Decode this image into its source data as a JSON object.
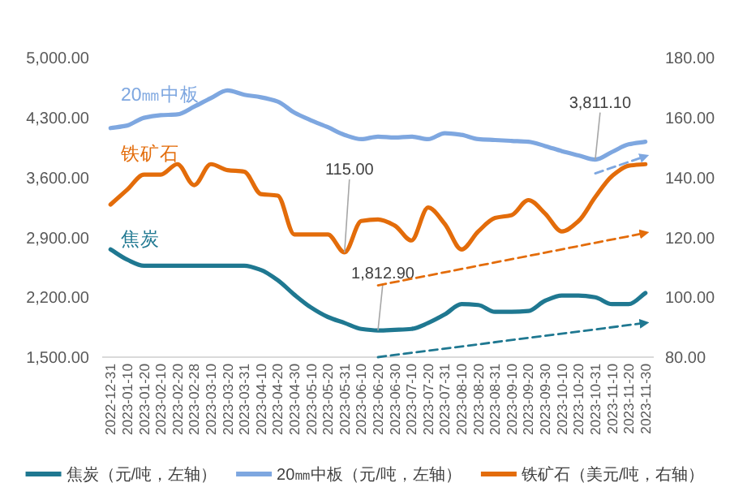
{
  "chart_data": {
    "type": "line",
    "categories": [
      "2022-12-31",
      "2023-01-10",
      "2023-01-20",
      "2023-02-10",
      "2023-02-20",
      "2023-02-28",
      "2023-03-10",
      "2023-03-20",
      "2023-03-31",
      "2023-04-10",
      "2023-04-20",
      "2023-04-30",
      "2023-05-10",
      "2023-05-20",
      "2023-05-31",
      "2023-06-10",
      "2023-06-20",
      "2023-06-30",
      "2023-07-10",
      "2023-07-20",
      "2023-07-31",
      "2023-08-10",
      "2023-08-20",
      "2023-08-31",
      "2023-09-10",
      "2023-09-20",
      "2023-09-30",
      "2023-10-10",
      "2023-10-20",
      "2023-10-31",
      "2023-11-10",
      "2023-11-20",
      "2023-11-30"
    ],
    "series": [
      {
        "name": "焦炭（元/吨，左轴）",
        "color": "#1f7891",
        "values": [
          2760,
          2640,
          2570,
          2570,
          2570,
          2570,
          2570,
          2570,
          2570,
          2520,
          2400,
          2230,
          2080,
          1970,
          1900,
          1830,
          1812.9,
          1820,
          1830,
          1900,
          2000,
          2120,
          2110,
          2030,
          2030,
          2040,
          2160,
          2220,
          2220,
          2200,
          2120,
          2120,
          2250
        ],
        "value_labels": [
          null,
          null,
          null,
          null,
          null,
          null,
          null,
          null,
          null,
          null,
          null,
          null,
          null,
          null,
          null,
          null,
          "1,812.90",
          null,
          null,
          null,
          null,
          null,
          null,
          null,
          null,
          null,
          null,
          null,
          null,
          null,
          null,
          null,
          null
        ]
      },
      {
        "name": "20㎜中板（元/吨，左轴）",
        "color": "#7ea7e0",
        "values": [
          4180,
          4210,
          4300,
          4330,
          4340,
          4430,
          4530,
          4620,
          4570,
          4540,
          4490,
          4360,
          4270,
          4190,
          4100,
          4050,
          4080,
          4070,
          4080,
          4050,
          4120,
          4100,
          4050,
          4040,
          4030,
          4020,
          3970,
          3910,
          3860,
          3811.1,
          3900,
          3990,
          4020
        ],
        "value_labels": [
          null,
          null,
          null,
          null,
          null,
          null,
          null,
          null,
          null,
          null,
          null,
          null,
          null,
          null,
          null,
          null,
          null,
          null,
          null,
          null,
          null,
          null,
          null,
          null,
          null,
          null,
          null,
          null,
          null,
          "3,811.10",
          null,
          null,
          null
        ]
      },
      {
        "name": "铁矿石（美元/吨，右轴）",
        "color": "#e36c0a",
        "axis": "y2",
        "values": [
          131,
          136,
          141,
          141,
          144.5,
          137.5,
          144.5,
          142.5,
          142,
          134.5,
          134,
          121,
          121,
          121,
          115.0,
          125.5,
          126,
          124,
          119,
          130,
          124.5,
          116,
          122,
          126.5,
          127.5,
          132.5,
          128,
          122,
          125.5,
          133.5,
          140.5,
          144,
          144.5
        ],
        "value_labels": [
          null,
          null,
          null,
          null,
          null,
          null,
          null,
          null,
          null,
          null,
          null,
          null,
          null,
          null,
          "115.00",
          null,
          null,
          null,
          null,
          null,
          null,
          null,
          null,
          null,
          null,
          null,
          null,
          null,
          null,
          null,
          null,
          null,
          null
        ]
      },
      {
        "color": "#1f7891",
        "line_style": "dashed",
        "values": [
          null,
          null,
          null,
          null,
          null,
          null,
          null,
          null,
          null,
          null,
          null,
          null,
          null,
          null,
          null,
          null,
          1500,
          null,
          null,
          null,
          null,
          null,
          null,
          null,
          null,
          null,
          null,
          null,
          null,
          null,
          null,
          null,
          1900
        ]
      },
      {
        "color": "#e36c0a",
        "line_style": "dashed",
        "axis": "y2",
        "values": [
          null,
          null,
          null,
          null,
          null,
          null,
          null,
          null,
          null,
          null,
          null,
          null,
          null,
          null,
          null,
          null,
          104,
          null,
          null,
          null,
          null,
          null,
          null,
          null,
          null,
          null,
          null,
          null,
          null,
          null,
          null,
          null,
          121.5
        ]
      },
      {
        "color": "#7ea7e0",
        "line_style": "dashed",
        "values": [
          null,
          null,
          null,
          null,
          null,
          null,
          null,
          null,
          null,
          null,
          null,
          null,
          null,
          null,
          null,
          null,
          null,
          null,
          null,
          null,
          null,
          null,
          null,
          null,
          null,
          null,
          null,
          null,
          null,
          3650,
          null,
          null,
          3850
        ]
      }
    ],
    "annotations": [
      "焦炭",
      "20㎜中板",
      "铁矿石"
    ],
    "ylim": [
      1500,
      5000
    ],
    "yticks": [
      {
        "value": 1500,
        "label": "1,500.00"
      },
      {
        "value": 2200,
        "label": "2,200.00"
      },
      {
        "value": 2900,
        "label": "2,900.00"
      },
      {
        "value": 3600,
        "label": "3,600.00"
      },
      {
        "value": 4300,
        "label": "4,300.00"
      },
      {
        "value": 5000,
        "label": "5,000.00"
      }
    ],
    "y2lim": [
      80,
      180
    ],
    "y2ticks": [
      {
        "value": 80,
        "label": "80.00"
      },
      {
        "value": 100,
        "label": "100.00"
      },
      {
        "value": 120,
        "label": "120.00"
      },
      {
        "value": 140,
        "label": "140.00"
      },
      {
        "value": 160,
        "label": "160.00"
      },
      {
        "value": 180,
        "label": "180.00"
      }
    ],
    "legend": "bottom"
  }
}
